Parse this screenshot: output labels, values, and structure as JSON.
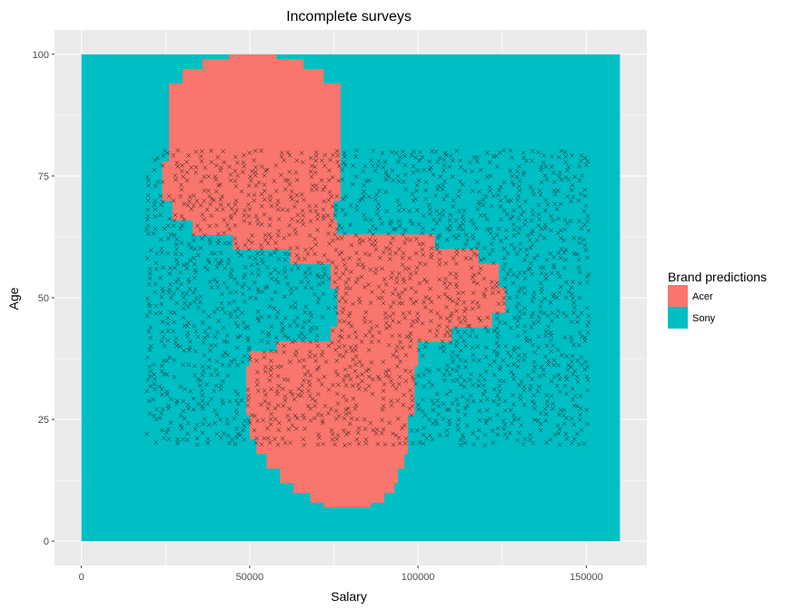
{
  "chart_data": {
    "type": "heatmap",
    "title": "Incomplete surveys",
    "xlabel": "Salary",
    "ylabel": "Age",
    "xlim": [
      -8000,
      168000
    ],
    "ylim": [
      -5,
      105
    ],
    "x_ticks": [
      {
        "value": 0,
        "label": "0"
      },
      {
        "value": 50000,
        "label": "50000"
      },
      {
        "value": 100000,
        "label": "100000"
      },
      {
        "value": 150000,
        "label": "150000"
      }
    ],
    "y_ticks": [
      {
        "value": 0,
        "label": "0"
      },
      {
        "value": 25,
        "label": "25"
      },
      {
        "value": 50,
        "label": "50"
      },
      {
        "value": 75,
        "label": "75"
      },
      {
        "value": 100,
        "label": "100"
      }
    ],
    "grid": true,
    "background": "#EBEBEB",
    "legend": {
      "title": "Brand predictions",
      "position": "right",
      "entries": [
        {
          "name": "Acer",
          "color": "#F8766D"
        },
        {
          "name": "Sony",
          "color": "#00BFC4"
        }
      ]
    },
    "prediction_grid": {
      "x_range": [
        0,
        160000
      ],
      "y_range": [
        0,
        100
      ],
      "default_class": "Sony",
      "acer_regions": [
        {
          "y_range": [
            100,
            99
          ],
          "x_range": [
            44000,
            58000
          ]
        },
        {
          "y_range": [
            99,
            97
          ],
          "x_range": [
            36000,
            66000
          ]
        },
        {
          "y_range": [
            97,
            94
          ],
          "x_range": [
            30000,
            72000
          ]
        },
        {
          "y_range": [
            94,
            78
          ],
          "x_range": [
            26000,
            77000
          ]
        },
        {
          "y_range": [
            78,
            70
          ],
          "x_range": [
            24000,
            77000
          ]
        },
        {
          "y_range": [
            70,
            66
          ],
          "x_range": [
            27000,
            75000
          ]
        },
        {
          "y_range": [
            66,
            63
          ],
          "x_range": [
            33000,
            76000
          ]
        },
        {
          "y_range": [
            63,
            60
          ],
          "x_range": [
            45000,
            105000
          ]
        },
        {
          "y_range": [
            60,
            57
          ],
          "x_range": [
            62000,
            118000
          ]
        },
        {
          "y_range": [
            57,
            52
          ],
          "x_range": [
            74000,
            124000
          ]
        },
        {
          "y_range": [
            52,
            47
          ],
          "x_range": [
            76000,
            126000
          ]
        },
        {
          "y_range": [
            47,
            44
          ],
          "x_range": [
            76000,
            122000
          ]
        },
        {
          "y_range": [
            44,
            41
          ],
          "x_range": [
            74000,
            110000
          ]
        },
        {
          "y_range": [
            41,
            39
          ],
          "x_range": [
            58000,
            100000
          ]
        },
        {
          "y_range": [
            39,
            36
          ],
          "x_range": [
            50000,
            100000
          ]
        },
        {
          "y_range": [
            36,
            26
          ],
          "x_range": [
            49000,
            99000
          ]
        },
        {
          "y_range": [
            26,
            21
          ],
          "x_range": [
            50000,
            97000
          ]
        },
        {
          "y_range": [
            21,
            18
          ],
          "x_range": [
            52000,
            97000
          ]
        },
        {
          "y_range": [
            18,
            15
          ],
          "x_range": [
            55000,
            96000
          ]
        },
        {
          "y_range": [
            15,
            12
          ],
          "x_range": [
            59000,
            94000
          ]
        },
        {
          "y_range": [
            12,
            10
          ],
          "x_range": [
            63000,
            93000
          ]
        },
        {
          "y_range": [
            10,
            8
          ],
          "x_range": [
            68000,
            90000
          ]
        },
        {
          "y_range": [
            8,
            7
          ],
          "x_range": [
            72000,
            86000
          ]
        }
      ]
    },
    "scatter": {
      "marker": "x",
      "color": "#000000",
      "x_range": [
        20000,
        150000
      ],
      "y_range": [
        20,
        80
      ]
    }
  }
}
